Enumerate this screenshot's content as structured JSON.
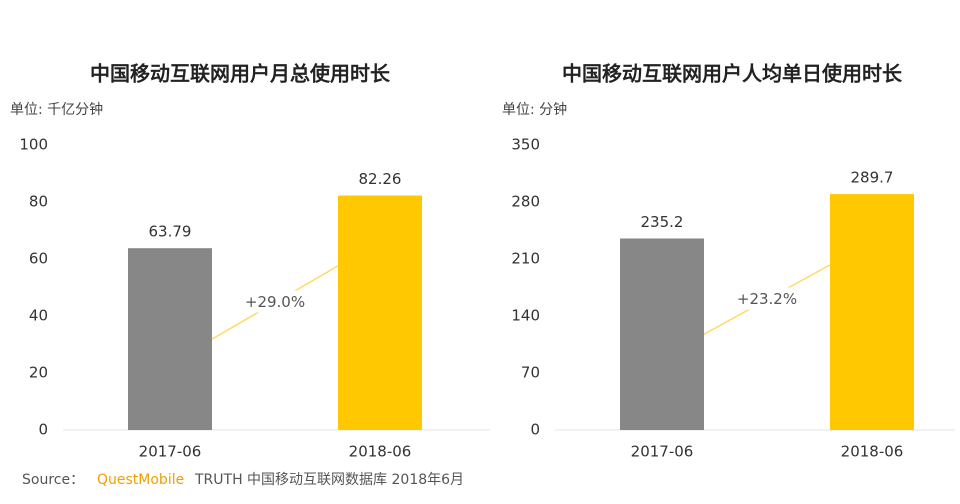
{
  "chart_data": [
    {
      "type": "bar",
      "title": "中国移动互联网用户月总使用时长",
      "unit": "单位: 千亿分钟",
      "categories": [
        "2017-06",
        "2018-06"
      ],
      "values": [
        63.79,
        82.26
      ],
      "colors": [
        "#878787",
        "#ffc800"
      ],
      "ylim": [
        0,
        100
      ],
      "yticks": [
        0,
        20,
        40,
        60,
        80,
        100
      ],
      "annotation": "+29.0%"
    },
    {
      "type": "bar",
      "title": "中国移动互联网用户人均单日使用时长",
      "unit": "单位: 分钟",
      "categories": [
        "2017-06",
        "2018-06"
      ],
      "values": [
        235.2,
        289.7
      ],
      "colors": [
        "#878787",
        "#ffc800"
      ],
      "ylim": [
        0,
        350
      ],
      "yticks": [
        0,
        70,
        140,
        210,
        280,
        350
      ],
      "annotation": "+23.2%"
    }
  ],
  "source": {
    "label": "Source：",
    "brand": "QuestMobile",
    "text": "TRUTH 中国移动互联网数据库 2018年6月"
  }
}
